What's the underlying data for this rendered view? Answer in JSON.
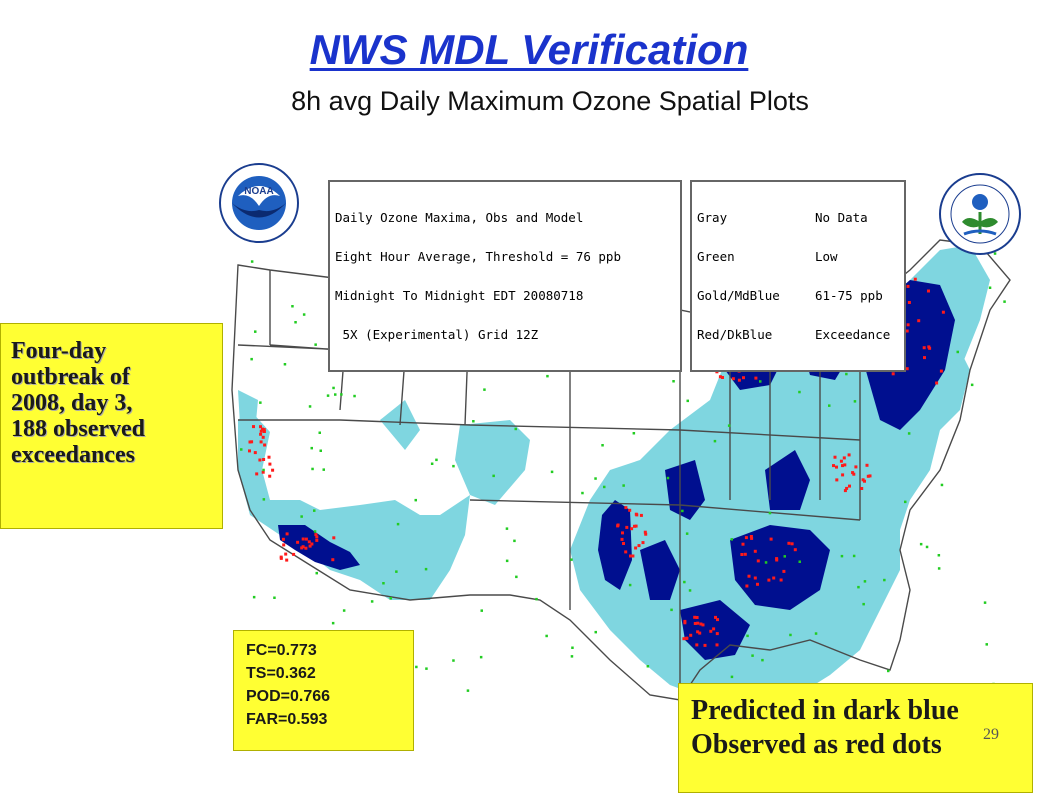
{
  "header": {
    "title": "NWS MDL Verification",
    "subtitle": "8h avg Daily Maximum Ozone Spatial Plots"
  },
  "map": {
    "legend_left_lines": [
      "Daily Ozone Maxima, Obs and Model",
      "Eight Hour Average, Threshold = 76 ppb",
      "Midnight To Midnight EDT 20080718",
      " 5X (Experimental) Grid 12Z"
    ],
    "legend_right_rows": [
      {
        "label": "Gray",
        "value": "No Data"
      },
      {
        "label": "Green",
        "value": "Low"
      },
      {
        "label": "Gold/MdBlue",
        "value": "61-75 ppb"
      },
      {
        "label": "Red/DkBlue",
        "value": "Exceedance"
      }
    ],
    "colors": {
      "light_blue": "#7fd6e0",
      "dark_blue": "#000f8f",
      "observed_red": "#ff1a1a",
      "low_green": "#22cc22",
      "gold": "#e0b000",
      "boundary": "#4a4a4a"
    }
  },
  "logos": {
    "noaa_label": "NOAA",
    "epa_icon": "epa-seal-icon",
    "noaa_icon": "noaa-seal-icon"
  },
  "callouts": {
    "outbreak_lines": [
      "Four-day",
      "outbreak of",
      "2008, day 3,",
      "188 observed",
      "exceedances"
    ],
    "stats_lines": [
      "FC=0.773",
      "TS=0.362",
      "POD=0.766",
      "FAR=0.593"
    ],
    "predicted_lines": [
      "Predicted in dark blue",
      "Observed as red dots"
    ]
  },
  "slide_number": "29"
}
